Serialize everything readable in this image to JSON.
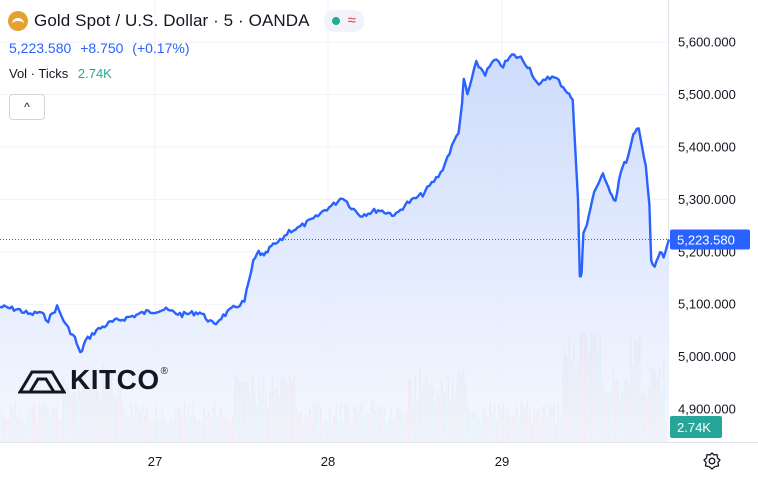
{
  "header": {
    "title": "Gold Spot / U.S. Dollar · 5 · OANDA",
    "last_price": "5,223.580",
    "change": "+8.750",
    "change_pct": "(+0.17%)",
    "volume_label": "Vol · Ticks",
    "volume_value": "2.74K",
    "collapse_symbol": "^",
    "status_symbol": "≈"
  },
  "logo": {
    "name": "KITCO",
    "reg": "®"
  },
  "price_badge": "5,223.580",
  "volume_badge": "2.74K",
  "colors": {
    "line": "#2962ff",
    "area_top": "#c9d8fb",
    "area_bottom": "#f4f7ff",
    "vol_up": "#22ab94",
    "vol_down": "#f23645",
    "badge_price": "#2962ff",
    "badge_volume": "#26a69a"
  },
  "chart_data": {
    "type": "area",
    "x_tick_labels": [
      "27",
      "28",
      "29"
    ],
    "y_tick_labels": [
      "5,600.000",
      "5,500.000",
      "5,400.000",
      "5,300.000",
      "5,200.000",
      "5,100.000",
      "5,000.000",
      "4,900.000"
    ],
    "y_ticks": [
      5600,
      5500,
      5400,
      5300,
      5200,
      5100,
      5000,
      4900
    ],
    "ylim": [
      4840,
      5660
    ],
    "x_range": [
      26.18,
      29.93
    ],
    "last_price": 5223.58,
    "grid": true,
    "series": [
      {
        "x": [
          26.18,
          26.28,
          26.35,
          26.4,
          26.45,
          26.5,
          26.55,
          26.6,
          26.63,
          26.66,
          26.72,
          26.8,
          26.9,
          27.0,
          27.1,
          27.2,
          27.3,
          27.38,
          27.42,
          27.5,
          27.55,
          27.6,
          27.63,
          27.66,
          27.7,
          27.75,
          27.8,
          27.85,
          27.9,
          27.95,
          28.0,
          28.05,
          28.1,
          28.15,
          28.2,
          28.3,
          28.4,
          28.45,
          28.5,
          28.55,
          28.6,
          28.65,
          28.7,
          28.75,
          28.77,
          28.78,
          28.8,
          28.85,
          28.9,
          28.95,
          29.0,
          29.05,
          29.1,
          29.15,
          29.2,
          29.25,
          29.3,
          29.35,
          29.39,
          29.42,
          29.43,
          29.44,
          29.45,
          29.47,
          29.5,
          29.53,
          29.56,
          29.58,
          29.6,
          29.63,
          29.66,
          29.7,
          29.73,
          29.76,
          29.78,
          29.8,
          29.82,
          29.83,
          29.85,
          29.88,
          29.9,
          29.93
        ],
        "y": [
          5095,
          5090,
          5080,
          5085,
          5070,
          5095,
          5060,
          5035,
          5005,
          5030,
          5050,
          5065,
          5075,
          5085,
          5090,
          5080,
          5085,
          5060,
          5075,
          5095,
          5105,
          5180,
          5200,
          5190,
          5210,
          5220,
          5240,
          5245,
          5255,
          5265,
          5280,
          5290,
          5305,
          5285,
          5270,
          5280,
          5270,
          5290,
          5300,
          5310,
          5330,
          5350,
          5390,
          5430,
          5480,
          5530,
          5500,
          5560,
          5540,
          5565,
          5555,
          5575,
          5570,
          5550,
          5515,
          5535,
          5530,
          5510,
          5490,
          5300,
          5150,
          5160,
          5240,
          5250,
          5300,
          5330,
          5350,
          5330,
          5310,
          5300,
          5355,
          5380,
          5420,
          5440,
          5400,
          5360,
          5290,
          5180,
          5170,
          5200,
          5190,
          5223.58
        ]
      }
    ]
  }
}
